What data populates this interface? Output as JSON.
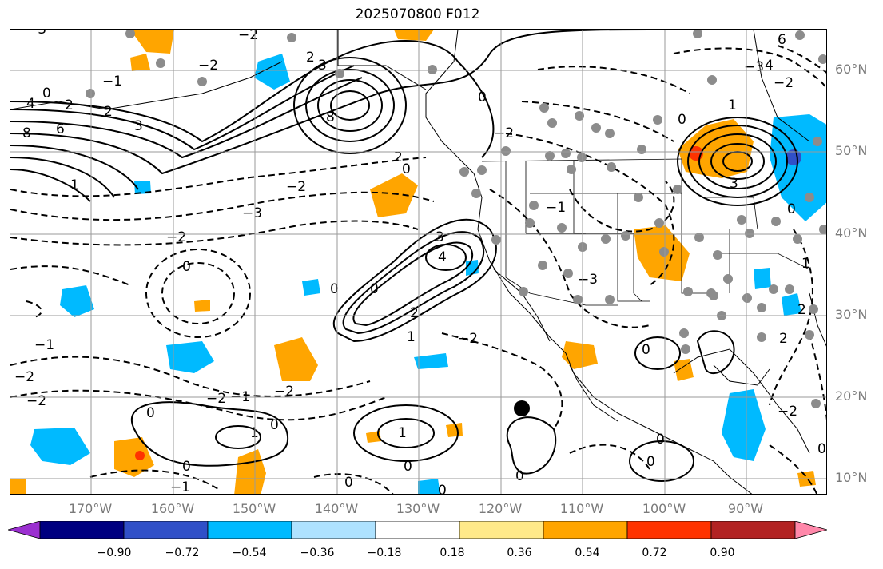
{
  "title": "2025070800 F012",
  "lat_labels": [
    "60°N",
    "50°N",
    "40°N",
    "30°N",
    "20°N",
    "10°N"
  ],
  "lon_labels": [
    "170°W",
    "160°W",
    "150°W",
    "140°W",
    "130°W",
    "120°W",
    "110°W",
    "100°W",
    "90°W"
  ],
  "colorbar": {
    "ticks": [
      "−0.90",
      "−0.72",
      "−0.54",
      "−0.36",
      "−0.18",
      "0.18",
      "0.36",
      "0.54",
      "0.72",
      "0.90"
    ],
    "colors": [
      "#9b30d0",
      "#000080",
      "#3050c8",
      "#00baff",
      "#aee2ff",
      "#ffffff",
      "#ffe989",
      "#ffa500",
      "#ff3300",
      "#b22222",
      "#ff88aa"
    ]
  },
  "contour_labels": [
    "0",
    "1",
    "2",
    "3",
    "4",
    "6",
    "8",
    "−1",
    "−2",
    "−3"
  ],
  "colors": {
    "positive_anomaly": "#ffa500",
    "strong_positive": "#ff3300",
    "negative_anomaly": "#00baff",
    "strong_negative": "#3050c8",
    "station_marker": "#8c8c8c",
    "grid": "#9a9a9a"
  }
}
